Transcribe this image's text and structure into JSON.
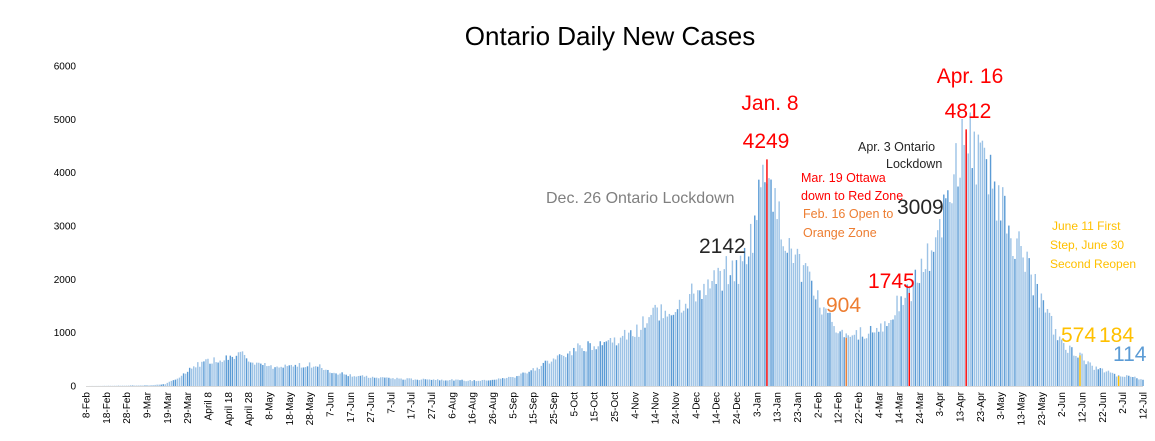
{
  "chart_data": {
    "type": "bar",
    "title": "Ontario Daily New Cases",
    "xlabel": "",
    "ylabel": "",
    "ylim": [
      0,
      6000
    ],
    "yticks": [
      0,
      1000,
      2000,
      3000,
      4000,
      5000,
      6000
    ],
    "grid": false,
    "legend": "none",
    "colors": {
      "bar_light": "#9dc3e6",
      "bar_dark": "#5b9bd5",
      "red": "#ff0000",
      "orange": "#ed7d31",
      "gold": "#ffc000",
      "blue": "#5b9bd5",
      "gray": "#808080",
      "dark": "#262626"
    },
    "x_start": "2020-02-08",
    "x_end": "2021-07-12",
    "xtick_labels": [
      "8-Feb",
      "18-Feb",
      "28-Feb",
      "9-Mar",
      "19-Mar",
      "29-Mar",
      "April 8",
      "April 18",
      "April 28",
      "8-May",
      "18-May",
      "28-May",
      "7-Jun",
      "17-Jun",
      "27-Jun",
      "7-Jul",
      "17-Jul",
      "27-Jul",
      "6-Aug",
      "16-Aug",
      "26-Aug",
      "5-Sep",
      "15-Sep",
      "25-Sep",
      "5-Oct",
      "15-Oct",
      "25-Oct",
      "4-Nov",
      "14-Nov",
      "24-Nov",
      "4-Dec",
      "14-Dec",
      "24-Dec",
      "3-Jan",
      "13-Jan",
      "23-Jan",
      "2-Feb",
      "12-Feb",
      "22-Feb",
      "4-Mar",
      "14-Mar",
      "24-Mar",
      "3-Apr",
      "13-Apr",
      "23-Apr",
      "3-May",
      "13-May",
      "23-May",
      "2-Jun",
      "12-Jun",
      "22-Jun",
      "2-Jul",
      "12-Jul"
    ],
    "anchor_values": [
      [
        "2020-02-08",
        0
      ],
      [
        "2020-02-25",
        5
      ],
      [
        "2020-03-10",
        12
      ],
      [
        "2020-03-18",
        35
      ],
      [
        "2020-03-26",
        180
      ],
      [
        "2020-04-02",
        390
      ],
      [
        "2020-04-09",
        480
      ],
      [
        "2020-04-16",
        520
      ],
      [
        "2020-04-24",
        600
      ],
      [
        "2020-05-01",
        460
      ],
      [
        "2020-05-10",
        330
      ],
      [
        "2020-05-20",
        370
      ],
      [
        "2020-05-31",
        400
      ],
      [
        "2020-06-08",
        260
      ],
      [
        "2020-06-20",
        190
      ],
      [
        "2020-07-01",
        160
      ],
      [
        "2020-07-15",
        130
      ],
      [
        "2020-08-01",
        120
      ],
      [
        "2020-08-15",
        100
      ],
      [
        "2020-08-28",
        125
      ],
      [
        "2020-09-06",
        175
      ],
      [
        "2020-09-15",
        315
      ],
      [
        "2020-09-25",
        490
      ],
      [
        "2020-10-05",
        690
      ],
      [
        "2020-10-15",
        790
      ],
      [
        "2020-10-25",
        870
      ],
      [
        "2020-11-04",
        990
      ],
      [
        "2020-11-14",
        1390
      ],
      [
        "2020-11-24",
        1480
      ],
      [
        "2020-12-04",
        1760
      ],
      [
        "2020-12-14",
        1970
      ],
      [
        "2020-12-22",
        2250
      ],
      [
        "2020-12-25",
        2142
      ],
      [
        "2021-01-01",
        2900
      ],
      [
        "2021-01-08",
        4249
      ],
      [
        "2021-01-12",
        3300
      ],
      [
        "2021-01-18",
        2800
      ],
      [
        "2021-01-25",
        2200
      ],
      [
        "2021-02-01",
        1700
      ],
      [
        "2021-02-06",
        1350
      ],
      [
        "2021-02-12",
        1050
      ],
      [
        "2021-02-16",
        904
      ],
      [
        "2021-02-22",
        1000
      ],
      [
        "2021-02-28",
        1050
      ],
      [
        "2021-03-06",
        1100
      ],
      [
        "2021-03-13",
        1500
      ],
      [
        "2021-03-19",
        1745
      ],
      [
        "2021-03-27",
        2300
      ],
      [
        "2021-04-03",
        3009
      ],
      [
        "2021-04-08",
        3700
      ],
      [
        "2021-04-16",
        4812
      ],
      [
        "2021-04-24",
        4100
      ],
      [
        "2021-05-01",
        3600
      ],
      [
        "2021-05-08",
        2900
      ],
      [
        "2021-05-15",
        2300
      ],
      [
        "2021-05-22",
        1700
      ],
      [
        "2021-05-30",
        1000
      ],
      [
        "2021-06-05",
        720
      ],
      [
        "2021-06-11",
        574
      ],
      [
        "2021-06-18",
        340
      ],
      [
        "2021-06-25",
        260
      ],
      [
        "2021-06-30",
        184
      ],
      [
        "2021-07-05",
        190
      ],
      [
        "2021-07-12",
        114
      ]
    ],
    "markers": [
      {
        "date": "2021-01-08",
        "value": 4249,
        "color": "#ff0000"
      },
      {
        "date": "2021-04-16",
        "value": 4812,
        "color": "#ff0000"
      },
      {
        "date": "2021-03-19",
        "value": 1745,
        "color": "#ff0000"
      },
      {
        "date": "2021-02-16",
        "value": 904,
        "color": "#ed7d31"
      },
      {
        "date": "2021-06-11",
        "value": 574,
        "color": "#ffc000"
      },
      {
        "date": "2021-06-30",
        "value": 184,
        "color": "#ffc000"
      }
    ],
    "annotations": [
      {
        "text": "Jan. 8",
        "color": "#ff0000"
      },
      {
        "text": "4249",
        "color": "#ff0000"
      },
      {
        "text": "Apr. 16",
        "color": "#ff0000"
      },
      {
        "text": "4812",
        "color": "#ff0000"
      },
      {
        "text": "Dec. 26 Ontario Lockdown",
        "color": "#808080"
      },
      {
        "text": "2142",
        "color": "#262626"
      },
      {
        "text": "Apr. 3 Ontario",
        "color": "#262626"
      },
      {
        "text": "Lockdown",
        "color": "#262626"
      },
      {
        "text": "3009",
        "color": "#262626"
      },
      {
        "text": "Mar. 19 Ottawa",
        "color": "#ff0000"
      },
      {
        "text": "down to Red Zone",
        "color": "#ff0000"
      },
      {
        "text": "Feb. 16 Open to",
        "color": "#ed7d31"
      },
      {
        "text": "Orange Zone",
        "color": "#ed7d31"
      },
      {
        "text": "1745",
        "color": "#ff0000"
      },
      {
        "text": "904",
        "color": "#ed7d31"
      },
      {
        "text": "June 11 First",
        "color": "#ffc000"
      },
      {
        "text": "Step, June 30",
        "color": "#ffc000"
      },
      {
        "text": "Second Reopen",
        "color": "#ffc000"
      },
      {
        "text": "574",
        "color": "#ffc000"
      },
      {
        "text": "184",
        "color": "#ffc000"
      },
      {
        "text": "114",
        "color": "#5b9bd5"
      }
    ]
  }
}
